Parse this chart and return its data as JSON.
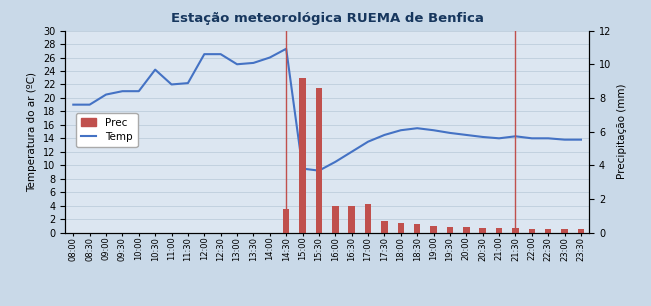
{
  "title": "Estação meteorológica RUEMA de Benfica",
  "ylabel_left": "Temperatura do ar (ºC)",
  "ylabel_right": "Precipitação (mm)",
  "background_color": "#c9d9e8",
  "plot_bg_color": "#dce6f1",
  "times": [
    "08:00",
    "08:30",
    "09:00",
    "09:30",
    "10:00",
    "10:30",
    "11:00",
    "11:30",
    "12:00",
    "12:30",
    "13:00",
    "13:30",
    "14:00",
    "14:30",
    "15:00",
    "15:30",
    "16:00",
    "16:30",
    "17:00",
    "17:30",
    "18:00",
    "18:30",
    "19:00",
    "19:30",
    "20:00",
    "20:30",
    "21:00",
    "21:30",
    "22:00",
    "22:30",
    "23:00",
    "23:30"
  ],
  "temperature": [
    19.0,
    19.0,
    20.5,
    21.0,
    21.0,
    24.2,
    22.0,
    22.2,
    26.5,
    26.5,
    25.0,
    25.2,
    26.0,
    27.3,
    9.5,
    9.2,
    10.5,
    12.0,
    13.5,
    14.5,
    15.2,
    15.5,
    15.2,
    14.8,
    14.5,
    14.2,
    14.0,
    14.3,
    14.0,
    14.0,
    13.8,
    13.8
  ],
  "precipitation": [
    0.0,
    0.0,
    0.0,
    0.0,
    0.0,
    0.0,
    0.0,
    0.0,
    0.0,
    0.0,
    0.0,
    0.0,
    0.0,
    1.4,
    9.2,
    8.6,
    1.6,
    1.6,
    1.7,
    0.7,
    0.55,
    0.5,
    0.4,
    0.35,
    0.35,
    0.3,
    0.3,
    0.3,
    0.2,
    0.2,
    0.2,
    0.2
  ],
  "temp_color": "#4472c4",
  "prec_color": "#c0504d",
  "ylim_temp": [
    0,
    30
  ],
  "ylim_prec": [
    0,
    12
  ],
  "yticks_temp": [
    0,
    2,
    4,
    6,
    8,
    10,
    12,
    14,
    16,
    18,
    20,
    22,
    24,
    26,
    28,
    30
  ],
  "yticks_prec": [
    0,
    2,
    4,
    6,
    8,
    10,
    12
  ],
  "vline_positions": [
    13,
    27
  ],
  "vline_color": "#c0504d"
}
